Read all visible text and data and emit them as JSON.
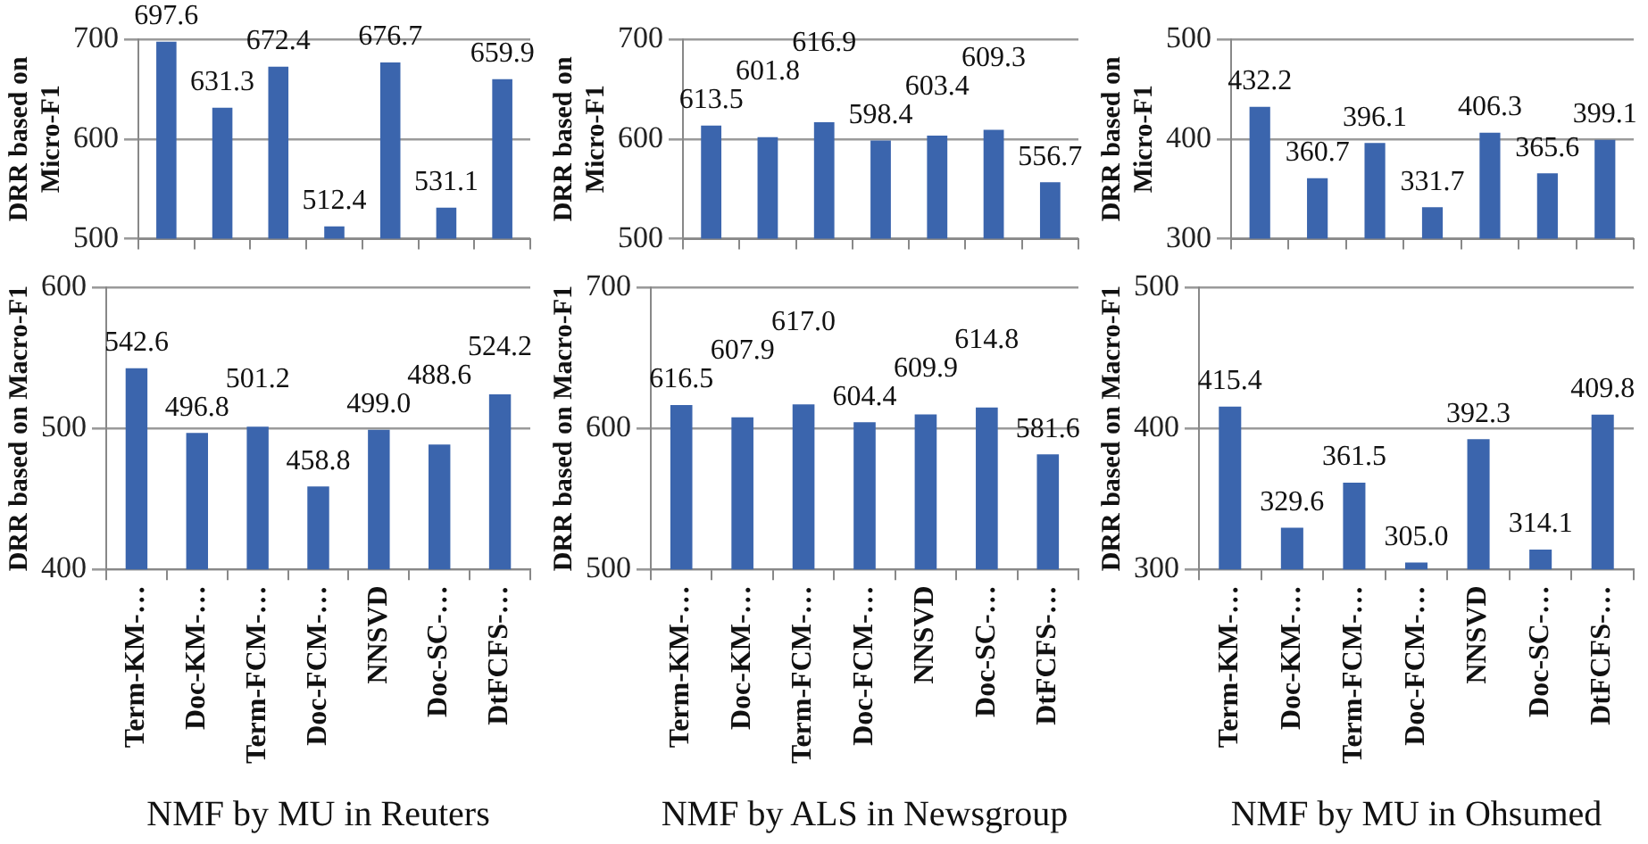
{
  "chart_data": [
    {
      "type": "bar",
      "ylabel": "DRR based on Micro-F1",
      "categories": [
        null,
        null,
        null,
        null,
        null,
        null,
        null
      ],
      "values": [
        697.6,
        631.3,
        672.4,
        512.4,
        676.7,
        531.1,
        659.9
      ],
      "value_labels": [
        "697.6",
        "631.3",
        "672.4",
        "512.4",
        "676.7",
        "531.1",
        "659.9"
      ],
      "color": "#3b65ad",
      "ylim": [
        500,
        700
      ],
      "yticks": [
        500,
        600,
        700
      ],
      "grid": "y",
      "tick_labels": "y"
    },
    {
      "type": "bar",
      "ylabel": "DRR based on Micro-F1",
      "categories": [
        null,
        null,
        null,
        null,
        null,
        null,
        null
      ],
      "values": [
        613.5,
        601.8,
        616.9,
        598.4,
        603.4,
        609.3,
        556.7
      ],
      "value_labels": [
        "613.5",
        "601.8",
        "616.9",
        "598.4",
        "603.4",
        "609.3",
        "556.7"
      ],
      "color": "#3b65ad",
      "ylim": [
        500,
        700
      ],
      "yticks": [
        500,
        600,
        700
      ],
      "grid": "y",
      "tick_labels": "y"
    },
    {
      "type": "bar",
      "ylabel": "DRR based on Micro-F1",
      "categories": [
        null,
        null,
        null,
        null,
        null,
        null,
        null
      ],
      "values": [
        432.2,
        360.7,
        396.1,
        331.7,
        406.3,
        365.6,
        399.1
      ],
      "value_labels": [
        "432.2",
        "360.7",
        "396.1",
        "331.7",
        "406.3",
        "365.6",
        "399.1"
      ],
      "color": "#3b65ad",
      "ylim": [
        300,
        500
      ],
      "yticks": [
        300,
        400,
        500
      ],
      "grid": "y",
      "tick_labels": "y"
    },
    {
      "type": "bar",
      "ylabel": "DRR based on Macro-F1",
      "xlabel": "NMF by MU in Reuters",
      "categories": [
        "Term-KM-…",
        "Doc-KM-…",
        "Term-FCM-…",
        "Doc-FCM-…",
        "NNSVD",
        "Doc-SC-…",
        "DtFCFS-…"
      ],
      "values": [
        542.6,
        496.8,
        501.2,
        458.8,
        499.0,
        488.6,
        524.2
      ],
      "value_labels": [
        "542.6",
        "496.8",
        "501.2",
        "458.8",
        "499.0",
        "488.6",
        "524.2"
      ],
      "color": "#3b65ad",
      "ylim": [
        400,
        600
      ],
      "yticks": [
        400,
        500,
        600
      ],
      "grid": "y"
    },
    {
      "type": "bar",
      "ylabel": "DRR based on Macro-F1",
      "xlabel": "NMF by ALS in Newsgroup",
      "categories": [
        "Term-KM-…",
        "Doc-KM-…",
        "Term-FCM-…",
        "Doc-FCM-…",
        "NNSVD",
        "Doc-SC-…",
        "DtFCFS-…"
      ],
      "values": [
        616.5,
        607.9,
        617.0,
        604.4,
        609.9,
        614.8,
        581.6
      ],
      "value_labels": [
        "616.5",
        "607.9",
        "617.0",
        "604.4",
        "609.9",
        "614.8",
        "581.6"
      ],
      "color": "#3b65ad",
      "ylim": [
        500,
        700
      ],
      "yticks": [
        500,
        600,
        700
      ],
      "grid": "y"
    },
    {
      "type": "bar",
      "ylabel": "DRR based on Macro-F1",
      "xlabel": "NMF by MU in Ohsumed",
      "categories": [
        "Term-KM-…",
        "Doc-KM-…",
        "Term-FCM-…",
        "Doc-FCM-…",
        "NNSVD",
        "Doc-SC-…",
        "DtFCFS-…"
      ],
      "values": [
        415.4,
        329.6,
        361.5,
        305.0,
        392.3,
        314.1,
        409.8
      ],
      "value_labels": [
        "415.4",
        "329.6",
        "361.5",
        "305.0",
        "392.3",
        "314.1",
        "409.8"
      ],
      "color": "#3b65ad",
      "ylim": [
        300,
        500
      ],
      "yticks": [
        300,
        400,
        500
      ],
      "grid": "y"
    }
  ]
}
